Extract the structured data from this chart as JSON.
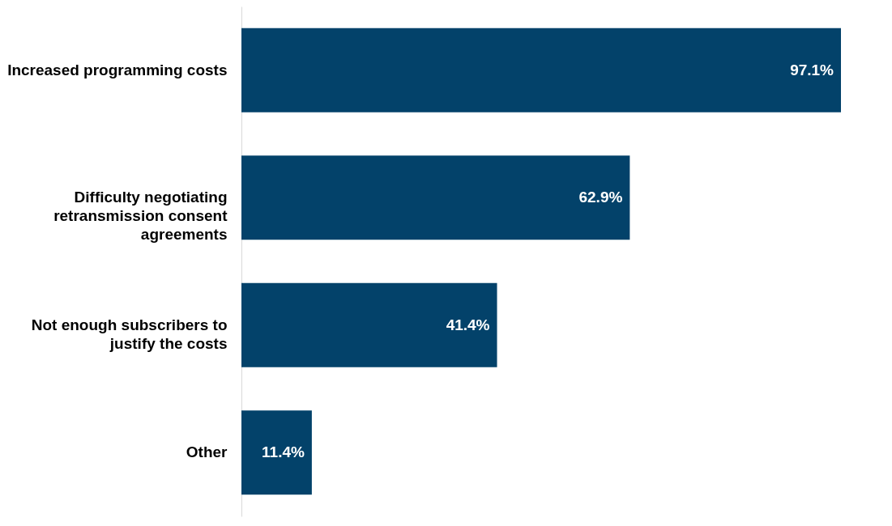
{
  "chart_data": {
    "type": "bar",
    "orientation": "horizontal",
    "categories": [
      "Increased programming costs",
      "Difficulty negotiating retransmission consent agreements",
      "Not enough subscribers to justify the costs",
      "Other"
    ],
    "values": [
      97.1,
      62.9,
      41.4,
      11.4
    ],
    "color": "#03426a",
    "value_labels": [
      "97.1%",
      "62.9%",
      "41.4%",
      "11.4%"
    ]
  }
}
